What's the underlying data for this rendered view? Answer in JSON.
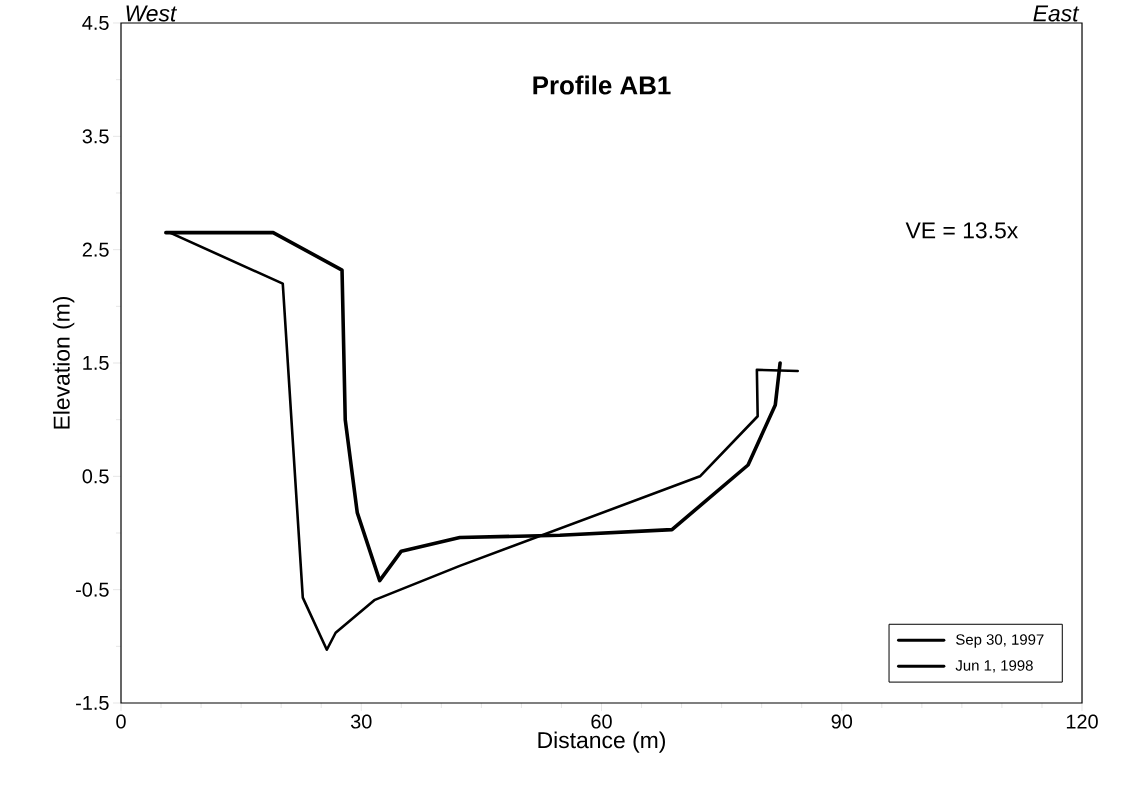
{
  "chart_data": {
    "type": "line",
    "title": "Profile AB1",
    "xlabel": "Distance (m)",
    "ylabel": "Elevation (m)",
    "annotations": [
      "West",
      "East",
      "VE = 13.5x"
    ],
    "xlim": [
      0,
      120
    ],
    "xticks": [
      0,
      30,
      60,
      90,
      120
    ],
    "ylim": [
      -1.5,
      4.5
    ],
    "yticks": [
      -1.5,
      -0.5,
      0.5,
      1.5,
      2.5,
      3.5,
      4.5
    ],
    "legend": "bottom right",
    "grid": false,
    "marker": "none",
    "line_style": "solid",
    "series": [
      {
        "name": "Sep 30, 1997",
        "color": "#000000",
        "x": [
          5.6,
          19.0,
          27.6,
          28.0,
          29.5,
          32.3,
          35.0,
          42.3,
          54.8,
          68.8,
          78.3,
          81.7,
          82.3
        ],
        "values": [
          2.65,
          2.65,
          2.32,
          1.0,
          0.18,
          -0.42,
          -0.16,
          -0.04,
          -0.02,
          0.03,
          0.6,
          1.13,
          1.5
        ]
      },
      {
        "name": "Jun 1, 1998",
        "color": "#000000",
        "x": [
          6.1,
          20.2,
          22.7,
          25.7,
          26.8,
          31.7,
          42.3,
          72.3,
          79.5,
          79.4,
          84.5
        ],
        "values": [
          2.65,
          2.2,
          -0.57,
          -1.03,
          -0.88,
          -0.59,
          -0.29,
          0.5,
          1.03,
          1.44,
          1.43
        ]
      }
    ]
  }
}
